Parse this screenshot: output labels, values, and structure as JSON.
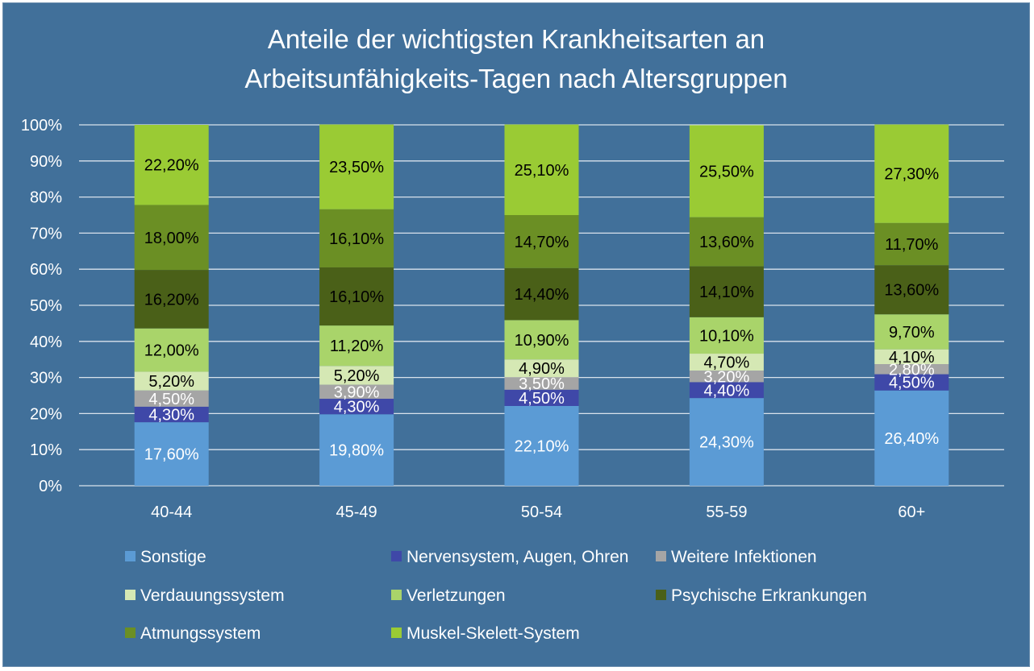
{
  "chart_data": {
    "type": "bar",
    "stacked": true,
    "title_lines": [
      "Anteile der wichtigsten Krankheitsarten an",
      "Arbeitsunfähigkeits-Tagen nach Altersgruppen"
    ],
    "xlabel": "",
    "ylabel": "",
    "ylim": [
      0,
      100
    ],
    "y_ticks": [
      "0%",
      "10%",
      "20%",
      "30%",
      "40%",
      "50%",
      "60%",
      "70%",
      "80%",
      "90%",
      "100%"
    ],
    "grid": true,
    "legend_position": "bottom",
    "background_color": "#41709a",
    "categories": [
      "40-44",
      "45-49",
      "50-54",
      "55-59",
      "60+"
    ],
    "series": [
      {
        "name": "Sonstige",
        "color": "#5b9bd5",
        "label_color": "#ffffff",
        "values": [
          17.6,
          19.8,
          22.1,
          24.3,
          26.4
        ],
        "labels": [
          "17,60%",
          "19,80%",
          "22,10%",
          "24,30%",
          "26,40%"
        ]
      },
      {
        "name": "Nervensystem, Augen, Ohren",
        "color": "#3f48a8",
        "label_color": "#ffffff",
        "values": [
          4.3,
          4.3,
          4.5,
          4.4,
          4.5
        ],
        "labels": [
          "4,30%",
          "4,30%",
          "4,50%",
          "4,40%",
          "4,50%"
        ]
      },
      {
        "name": "Weitere Infektionen",
        "color": "#a5a5a5",
        "label_color": "#ffffff",
        "values": [
          4.5,
          3.9,
          3.5,
          3.2,
          2.8
        ],
        "labels": [
          "4,50%",
          "3,90%",
          "3,50%",
          "3,20%",
          "2,80%"
        ]
      },
      {
        "name": "Verdauungssystem",
        "color": "#d5e8b4",
        "label_color": "#000000",
        "values": [
          5.2,
          5.2,
          4.9,
          4.7,
          4.1
        ],
        "labels": [
          "5,20%",
          "5,20%",
          "4,90%",
          "4,70%",
          "4,10%"
        ]
      },
      {
        "name": "Verletzungen",
        "color": "#a9d46a",
        "label_color": "#000000",
        "values": [
          12.0,
          11.2,
          10.9,
          10.1,
          9.7
        ],
        "labels": [
          "12,00%",
          "11,20%",
          "10,90%",
          "10,10%",
          "9,70%"
        ]
      },
      {
        "name": "Psychische Erkrankungen",
        "color": "#4a6018",
        "label_color": "#000000",
        "values": [
          16.2,
          16.1,
          14.4,
          14.1,
          13.6
        ],
        "labels": [
          "16,20%",
          "16,10%",
          "14,40%",
          "14,10%",
          "13,60%"
        ]
      },
      {
        "name": "Atmungssystem",
        "color": "#6b8f24",
        "label_color": "#000000",
        "values": [
          18.0,
          16.1,
          14.7,
          13.6,
          11.7
        ],
        "labels": [
          "18,00%",
          "16,10%",
          "14,70%",
          "13,60%",
          "11,70%"
        ]
      },
      {
        "name": "Muskel-Skelett-System",
        "color": "#9acb34",
        "label_color": "#000000",
        "values": [
          22.2,
          23.5,
          25.1,
          25.5,
          27.3
        ],
        "labels": [
          "22,20%",
          "23,50%",
          "25,10%",
          "25,50%",
          "27,30%"
        ]
      }
    ]
  }
}
